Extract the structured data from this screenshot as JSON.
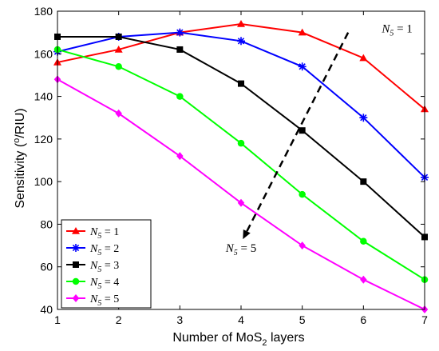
{
  "chart_data": {
    "type": "line",
    "xlabel_main": "Number of MoS",
    "xlabel_sub": "2",
    "xlabel_tail": " layers",
    "ylabel_main": "Sensitivity (",
    "ylabel_sup": "o",
    "ylabel_tail": "/RIU)",
    "xlim": [
      1,
      7
    ],
    "ylim": [
      40,
      180
    ],
    "xticks": [
      1,
      2,
      3,
      4,
      5,
      6,
      7
    ],
    "yticks": [
      40,
      60,
      80,
      100,
      120,
      140,
      160,
      180
    ],
    "x": [
      1,
      2,
      3,
      4,
      5,
      6,
      7
    ],
    "grid": false,
    "legend_position": "bottom-left",
    "series": [
      {
        "name": "N5 = 1",
        "name_var": "N",
        "name_sub": "5",
        "name_val": " = 1",
        "color": "#ff0000",
        "marker": "triangle",
        "values": [
          156,
          162,
          170,
          174,
          170,
          158,
          134
        ]
      },
      {
        "name": "N5 = 2",
        "name_var": "N",
        "name_sub": "5",
        "name_val": " = 2",
        "color": "#0000ff",
        "marker": "star",
        "values": [
          161,
          168,
          170,
          166,
          154,
          130,
          102
        ]
      },
      {
        "name": "N5 = 3",
        "name_var": "N",
        "name_sub": "5",
        "name_val": " = 3",
        "color": "#000000",
        "marker": "square",
        "values": [
          168,
          168,
          162,
          146,
          124,
          100,
          74
        ]
      },
      {
        "name": "N5 = 4",
        "name_var": "N",
        "name_sub": "5",
        "name_val": " = 4",
        "color": "#00ff00",
        "marker": "circle",
        "values": [
          162,
          154,
          140,
          118,
          94,
          72,
          54
        ]
      },
      {
        "name": "N5 = 5",
        "name_var": "N",
        "name_sub": "5",
        "name_val": " = 5",
        "color": "#ff00ff",
        "marker": "diamond",
        "values": [
          148,
          132,
          112,
          90,
          70,
          54,
          40
        ]
      }
    ],
    "annotations": [
      {
        "var": "N",
        "sub": "5",
        "val": " = 1",
        "x": 6.3,
        "y": 170
      },
      {
        "var": "N",
        "sub": "5",
        "val": " = 5",
        "x": 4.0,
        "y": 67
      }
    ],
    "arrow": {
      "x1": 5.75,
      "y1": 170,
      "x2": 4.03,
      "y2": 73,
      "style": "dashed"
    }
  }
}
